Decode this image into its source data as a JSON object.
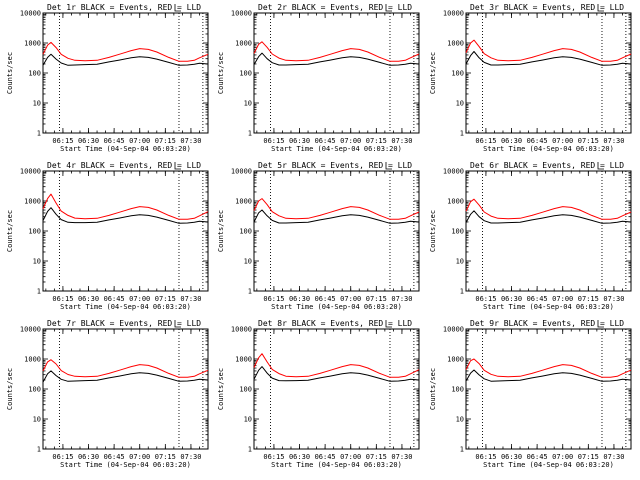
{
  "figure": {
    "axis_x_label": "Start Time (04-Sep-04 06:03:20)",
    "axis_y_label": "Counts/sec",
    "x_tick_labels": [
      "06:15",
      "06:30",
      "06:45",
      "07:00",
      "07:15",
      "07:30"
    ],
    "y_tick_labels": [
      "1",
      "10",
      "100",
      "1000",
      "10000"
    ],
    "colors": {
      "events": "#000000",
      "lld": "#ff0000"
    }
  },
  "chart_data": [
    {
      "type": "line",
      "title": "Det 1r BLACK = Events, RED = LLD",
      "xlabel": "Start Time (04-Sep-04 06:03:20)",
      "ylabel": "Counts/sec",
      "xlim": [
        "06:03:20",
        "07:40"
      ],
      "ylim": [
        1,
        10000
      ],
      "yscale": "log",
      "vertical_markers": [
        "06:13",
        "07:23",
        "07:37"
      ],
      "x": [
        "06:03:20",
        "06:06",
        "06:08",
        "06:11",
        "06:14",
        "06:18",
        "06:22",
        "06:28",
        "06:35",
        "06:42",
        "06:48",
        "06:55",
        "07:00",
        "07:05",
        "07:10",
        "07:17",
        "07:23",
        "07:28",
        "07:32",
        "07:35",
        "07:40"
      ],
      "series": [
        {
          "name": "Events",
          "color": "#000000",
          "values": [
            180,
            330,
            420,
            290,
            215,
            180,
            185,
            190,
            195,
            235,
            270,
            320,
            350,
            330,
            290,
            225,
            180,
            185,
            195,
            210,
            200
          ]
        },
        {
          "name": "LLD",
          "color": "#ff0000",
          "values": [
            420,
            850,
            1050,
            700,
            420,
            310,
            265,
            255,
            265,
            330,
            420,
            560,
            650,
            610,
            500,
            330,
            245,
            245,
            265,
            320,
            420
          ]
        }
      ]
    },
    {
      "type": "line",
      "title": "Det 2r BLACK = Events, RED = LLD",
      "xlabel": "Start Time (04-Sep-04 06:03:20)",
      "ylabel": "Counts/sec",
      "xlim": [
        "06:03:20",
        "07:40"
      ],
      "ylim": [
        1,
        10000
      ],
      "yscale": "log",
      "vertical_markers": [
        "06:13",
        "07:23",
        "07:37"
      ],
      "x": [
        "06:03:20",
        "06:06",
        "06:08",
        "06:11",
        "06:14",
        "06:18",
        "06:22",
        "06:28",
        "06:35",
        "06:42",
        "06:48",
        "06:55",
        "07:00",
        "07:05",
        "07:10",
        "07:17",
        "07:23",
        "07:28",
        "07:32",
        "07:35",
        "07:40"
      ],
      "series": [
        {
          "name": "Events",
          "color": "#000000",
          "values": [
            190,
            350,
            460,
            300,
            220,
            185,
            185,
            190,
            195,
            235,
            270,
            320,
            350,
            330,
            290,
            225,
            180,
            185,
            195,
            210,
            200
          ]
        },
        {
          "name": "LLD",
          "color": "#ff0000",
          "values": [
            450,
            900,
            1100,
            720,
            430,
            315,
            265,
            255,
            265,
            330,
            420,
            560,
            650,
            610,
            500,
            330,
            245,
            245,
            265,
            320,
            430
          ]
        }
      ]
    },
    {
      "type": "line",
      "title": "Det 3r BLACK = Events, RED = LLD",
      "xlabel": "Start Time (04-Sep-04 06:03:20)",
      "ylabel": "Counts/sec",
      "xlim": [
        "06:03:20",
        "07:40"
      ],
      "ylim": [
        1,
        10000
      ],
      "yscale": "log",
      "vertical_markers": [
        "06:13",
        "07:23",
        "07:37"
      ],
      "x": [
        "06:03:20",
        "06:06",
        "06:08",
        "06:11",
        "06:14",
        "06:18",
        "06:22",
        "06:28",
        "06:35",
        "06:42",
        "06:48",
        "06:55",
        "07:00",
        "07:05",
        "07:10",
        "07:17",
        "07:23",
        "07:28",
        "07:32",
        "07:35",
        "07:40"
      ],
      "series": [
        {
          "name": "Events",
          "color": "#000000",
          "values": [
            200,
            380,
            520,
            320,
            225,
            185,
            185,
            190,
            195,
            235,
            270,
            320,
            350,
            330,
            290,
            225,
            180,
            185,
            195,
            210,
            200
          ]
        },
        {
          "name": "LLD",
          "color": "#ff0000",
          "values": [
            480,
            1000,
            1250,
            760,
            440,
            320,
            265,
            255,
            265,
            330,
            420,
            560,
            650,
            610,
            500,
            330,
            245,
            245,
            265,
            320,
            430
          ]
        }
      ]
    },
    {
      "type": "line",
      "title": "Det 4r BLACK = Events, RED = LLD",
      "xlabel": "Start Time (04-Sep-04 06:03:20)",
      "ylabel": "Counts/sec",
      "xlim": [
        "06:03:20",
        "07:40"
      ],
      "ylim": [
        1,
        10000
      ],
      "yscale": "log",
      "vertical_markers": [
        "06:13",
        "07:23",
        "07:37"
      ],
      "x": [
        "06:03:20",
        "06:06",
        "06:08",
        "06:11",
        "06:14",
        "06:18",
        "06:22",
        "06:28",
        "06:35",
        "06:42",
        "06:48",
        "06:55",
        "07:00",
        "07:05",
        "07:10",
        "07:17",
        "07:23",
        "07:28",
        "07:32",
        "07:35",
        "07:40"
      ],
      "series": [
        {
          "name": "Events",
          "color": "#000000",
          "values": [
            220,
            450,
            600,
            360,
            240,
            195,
            190,
            190,
            195,
            235,
            270,
            320,
            350,
            330,
            290,
            225,
            180,
            185,
            195,
            210,
            200
          ]
        },
        {
          "name": "LLD",
          "color": "#ff0000",
          "values": [
            550,
            1200,
            1700,
            850,
            460,
            330,
            270,
            255,
            265,
            330,
            420,
            560,
            650,
            610,
            500,
            330,
            245,
            245,
            265,
            320,
            440
          ]
        }
      ]
    },
    {
      "type": "line",
      "title": "Det 5r BLACK = Events, RED = LLD",
      "xlabel": "Start Time (04-Sep-04 06:03:20)",
      "ylabel": "Counts/sec",
      "xlim": [
        "06:03:20",
        "07:40"
      ],
      "ylim": [
        1,
        10000
      ],
      "yscale": "log",
      "vertical_markers": [
        "06:13",
        "07:23",
        "07:37"
      ],
      "x": [
        "06:03:20",
        "06:06",
        "06:08",
        "06:11",
        "06:14",
        "06:18",
        "06:22",
        "06:28",
        "06:35",
        "06:42",
        "06:48",
        "06:55",
        "07:00",
        "07:05",
        "07:10",
        "07:17",
        "07:23",
        "07:28",
        "07:32",
        "07:35",
        "07:40"
      ],
      "series": [
        {
          "name": "Events",
          "color": "#000000",
          "values": [
            200,
            400,
            500,
            320,
            225,
            185,
            185,
            190,
            195,
            235,
            270,
            320,
            350,
            330,
            290,
            225,
            180,
            185,
            195,
            210,
            200
          ]
        },
        {
          "name": "LLD",
          "color": "#ff0000",
          "values": [
            480,
            1000,
            1200,
            760,
            440,
            320,
            265,
            255,
            265,
            330,
            420,
            560,
            650,
            610,
            500,
            330,
            245,
            245,
            265,
            320,
            430
          ]
        }
      ]
    },
    {
      "type": "line",
      "title": "Det 6r BLACK = Events, RED = LLD",
      "xlabel": "Start Time (04-Sep-04 06:03:20)",
      "ylabel": "Counts/sec",
      "xlim": [
        "06:03:20",
        "07:40"
      ],
      "ylim": [
        1,
        10000
      ],
      "yscale": "log",
      "vertical_markers": [
        "06:13",
        "07:23",
        "07:37"
      ],
      "x": [
        "06:03:20",
        "06:06",
        "06:08",
        "06:11",
        "06:14",
        "06:18",
        "06:22",
        "06:28",
        "06:35",
        "06:42",
        "06:48",
        "06:55",
        "07:00",
        "07:05",
        "07:10",
        "07:17",
        "07:23",
        "07:28",
        "07:32",
        "07:35",
        "07:40"
      ],
      "series": [
        {
          "name": "Events",
          "color": "#000000",
          "values": [
            190,
            360,
            470,
            300,
            220,
            185,
            185,
            190,
            195,
            235,
            270,
            320,
            350,
            330,
            290,
            225,
            180,
            185,
            195,
            210,
            200
          ]
        },
        {
          "name": "LLD",
          "color": "#ff0000",
          "values": [
            460,
            950,
            1150,
            730,
            430,
            315,
            265,
            255,
            265,
            330,
            420,
            560,
            650,
            610,
            500,
            330,
            245,
            245,
            265,
            320,
            430
          ]
        }
      ]
    },
    {
      "type": "line",
      "title": "Det 7r BLACK = Events, RED = LLD",
      "xlabel": "Start Time (04-Sep-04 06:03:20)",
      "ylabel": "Counts/sec",
      "xlim": [
        "06:03:20",
        "07:40"
      ],
      "ylim": [
        1,
        10000
      ],
      "yscale": "log",
      "vertical_markers": [
        "06:13",
        "07:23",
        "07:37"
      ],
      "x": [
        "06:03:20",
        "06:06",
        "06:08",
        "06:11",
        "06:14",
        "06:18",
        "06:22",
        "06:28",
        "06:35",
        "06:42",
        "06:48",
        "06:55",
        "07:00",
        "07:05",
        "07:10",
        "07:17",
        "07:23",
        "07:28",
        "07:32",
        "07:35",
        "07:40"
      ],
      "series": [
        {
          "name": "Events",
          "color": "#000000",
          "values": [
            170,
            320,
            400,
            280,
            210,
            180,
            185,
            190,
            195,
            235,
            270,
            320,
            350,
            330,
            290,
            225,
            180,
            185,
            195,
            210,
            200
          ]
        },
        {
          "name": "LLD",
          "color": "#ff0000",
          "values": [
            400,
            800,
            950,
            680,
            410,
            305,
            265,
            255,
            265,
            330,
            420,
            560,
            650,
            610,
            500,
            330,
            245,
            245,
            265,
            320,
            420
          ]
        }
      ]
    },
    {
      "type": "line",
      "title": "Det 8r BLACK = Events, RED = LLD",
      "xlabel": "Start Time (04-Sep-04 06:03:20)",
      "ylabel": "Counts/sec",
      "xlim": [
        "06:03:20",
        "07:40"
      ],
      "ylim": [
        1,
        10000
      ],
      "yscale": "log",
      "vertical_markers": [
        "06:13",
        "07:23",
        "07:37"
      ],
      "x": [
        "06:03:20",
        "06:06",
        "06:08",
        "06:11",
        "06:14",
        "06:18",
        "06:22",
        "06:28",
        "06:35",
        "06:42",
        "06:48",
        "06:55",
        "07:00",
        "07:05",
        "07:10",
        "07:17",
        "07:23",
        "07:28",
        "07:32",
        "07:35",
        "07:40"
      ],
      "series": [
        {
          "name": "Events",
          "color": "#000000",
          "values": [
            210,
            420,
            560,
            340,
            230,
            190,
            188,
            190,
            195,
            235,
            270,
            320,
            350,
            330,
            290,
            225,
            180,
            185,
            195,
            210,
            200
          ]
        },
        {
          "name": "LLD",
          "color": "#ff0000",
          "values": [
            520,
            1100,
            1500,
            800,
            450,
            325,
            268,
            255,
            265,
            330,
            420,
            560,
            650,
            610,
            500,
            330,
            245,
            245,
            265,
            320,
            440
          ]
        }
      ]
    },
    {
      "type": "line",
      "title": "Det 9r BLACK = Events, RED = LLD",
      "xlabel": "Start Time (04-Sep-04 06:03:20)",
      "ylabel": "Counts/sec",
      "xlim": [
        "06:03:20",
        "07:40"
      ],
      "ylim": [
        1,
        10000
      ],
      "yscale": "log",
      "vertical_markers": [
        "06:13",
        "07:23",
        "07:37"
      ],
      "x": [
        "06:03:20",
        "06:06",
        "06:08",
        "06:11",
        "06:14",
        "06:18",
        "06:22",
        "06:28",
        "06:35",
        "06:42",
        "06:48",
        "06:55",
        "07:00",
        "07:05",
        "07:10",
        "07:17",
        "07:23",
        "07:28",
        "07:32",
        "07:35",
        "07:40"
      ],
      "series": [
        {
          "name": "Events",
          "color": "#000000",
          "values": [
            185,
            340,
            430,
            295,
            218,
            182,
            185,
            190,
            195,
            235,
            270,
            320,
            350,
            330,
            290,
            225,
            180,
            185,
            195,
            210,
            200
          ]
        },
        {
          "name": "LLD",
          "color": "#ff0000",
          "values": [
            440,
            880,
            1000,
            700,
            420,
            310,
            265,
            255,
            265,
            330,
            420,
            560,
            650,
            610,
            500,
            330,
            245,
            245,
            265,
            320,
            425
          ]
        }
      ]
    }
  ]
}
